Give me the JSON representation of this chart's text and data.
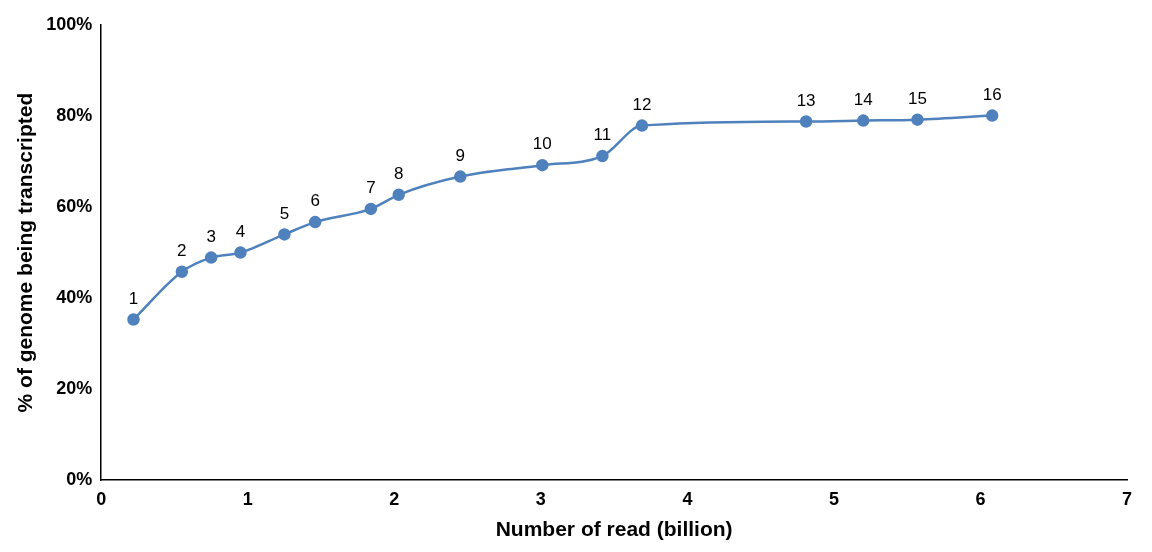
{
  "chart_data": {
    "type": "line",
    "xlabel": "Number of read (billion)",
    "ylabel": "% of genome being transcripted",
    "x": [
      0.22,
      0.55,
      0.75,
      0.95,
      1.25,
      1.46,
      1.84,
      2.03,
      2.45,
      3.01,
      3.42,
      3.69,
      4.81,
      5.2,
      5.57,
      6.08
    ],
    "series": [
      {
        "color": "#4f81bd",
        "values": [
          35.3,
          45.8,
          48.9,
          50.0,
          54.0,
          56.7,
          59.6,
          62.7,
          66.7,
          69.2,
          71.2,
          77.9,
          78.8,
          79.0,
          79.2,
          80.1
        ]
      }
    ],
    "xlim": [
      0,
      7
    ],
    "xticks": [
      0,
      1,
      2,
      3,
      4,
      5,
      6,
      7
    ],
    "ylim": [
      0,
      100
    ],
    "yticks": [
      {
        "value": 0,
        "label": "0%"
      },
      {
        "value": 20,
        "label": "20%"
      },
      {
        "value": 40,
        "label": "40%"
      },
      {
        "value": 60,
        "label": "60%"
      },
      {
        "value": 80,
        "label": "80%"
      },
      {
        "value": 100,
        "label": "100%"
      }
    ],
    "grid": false,
    "legend": false,
    "marker": "circle",
    "line_style": "solid",
    "annotations": [
      {
        "text": "1",
        "x": 0.22,
        "y": 35.3
      },
      {
        "text": "2",
        "x": 0.55,
        "y": 45.8
      },
      {
        "text": "3",
        "x": 0.75,
        "y": 48.9
      },
      {
        "text": "4",
        "x": 0.95,
        "y": 50.0
      },
      {
        "text": "5",
        "x": 1.25,
        "y": 54.0
      },
      {
        "text": "6",
        "x": 1.46,
        "y": 56.7
      },
      {
        "text": "7",
        "x": 1.84,
        "y": 59.6
      },
      {
        "text": "8",
        "x": 2.03,
        "y": 62.7
      },
      {
        "text": "9",
        "x": 2.45,
        "y": 66.7
      },
      {
        "text": "10",
        "x": 3.01,
        "y": 69.2
      },
      {
        "text": "11",
        "x": 3.42,
        "y": 71.2
      },
      {
        "text": "12",
        "x": 3.69,
        "y": 77.9
      },
      {
        "text": "13",
        "x": 4.81,
        "y": 78.8
      },
      {
        "text": "14",
        "x": 5.2,
        "y": 79.0
      },
      {
        "text": "15",
        "x": 5.57,
        "y": 79.2
      },
      {
        "text": "16",
        "x": 6.08,
        "y": 80.1
      }
    ]
  }
}
